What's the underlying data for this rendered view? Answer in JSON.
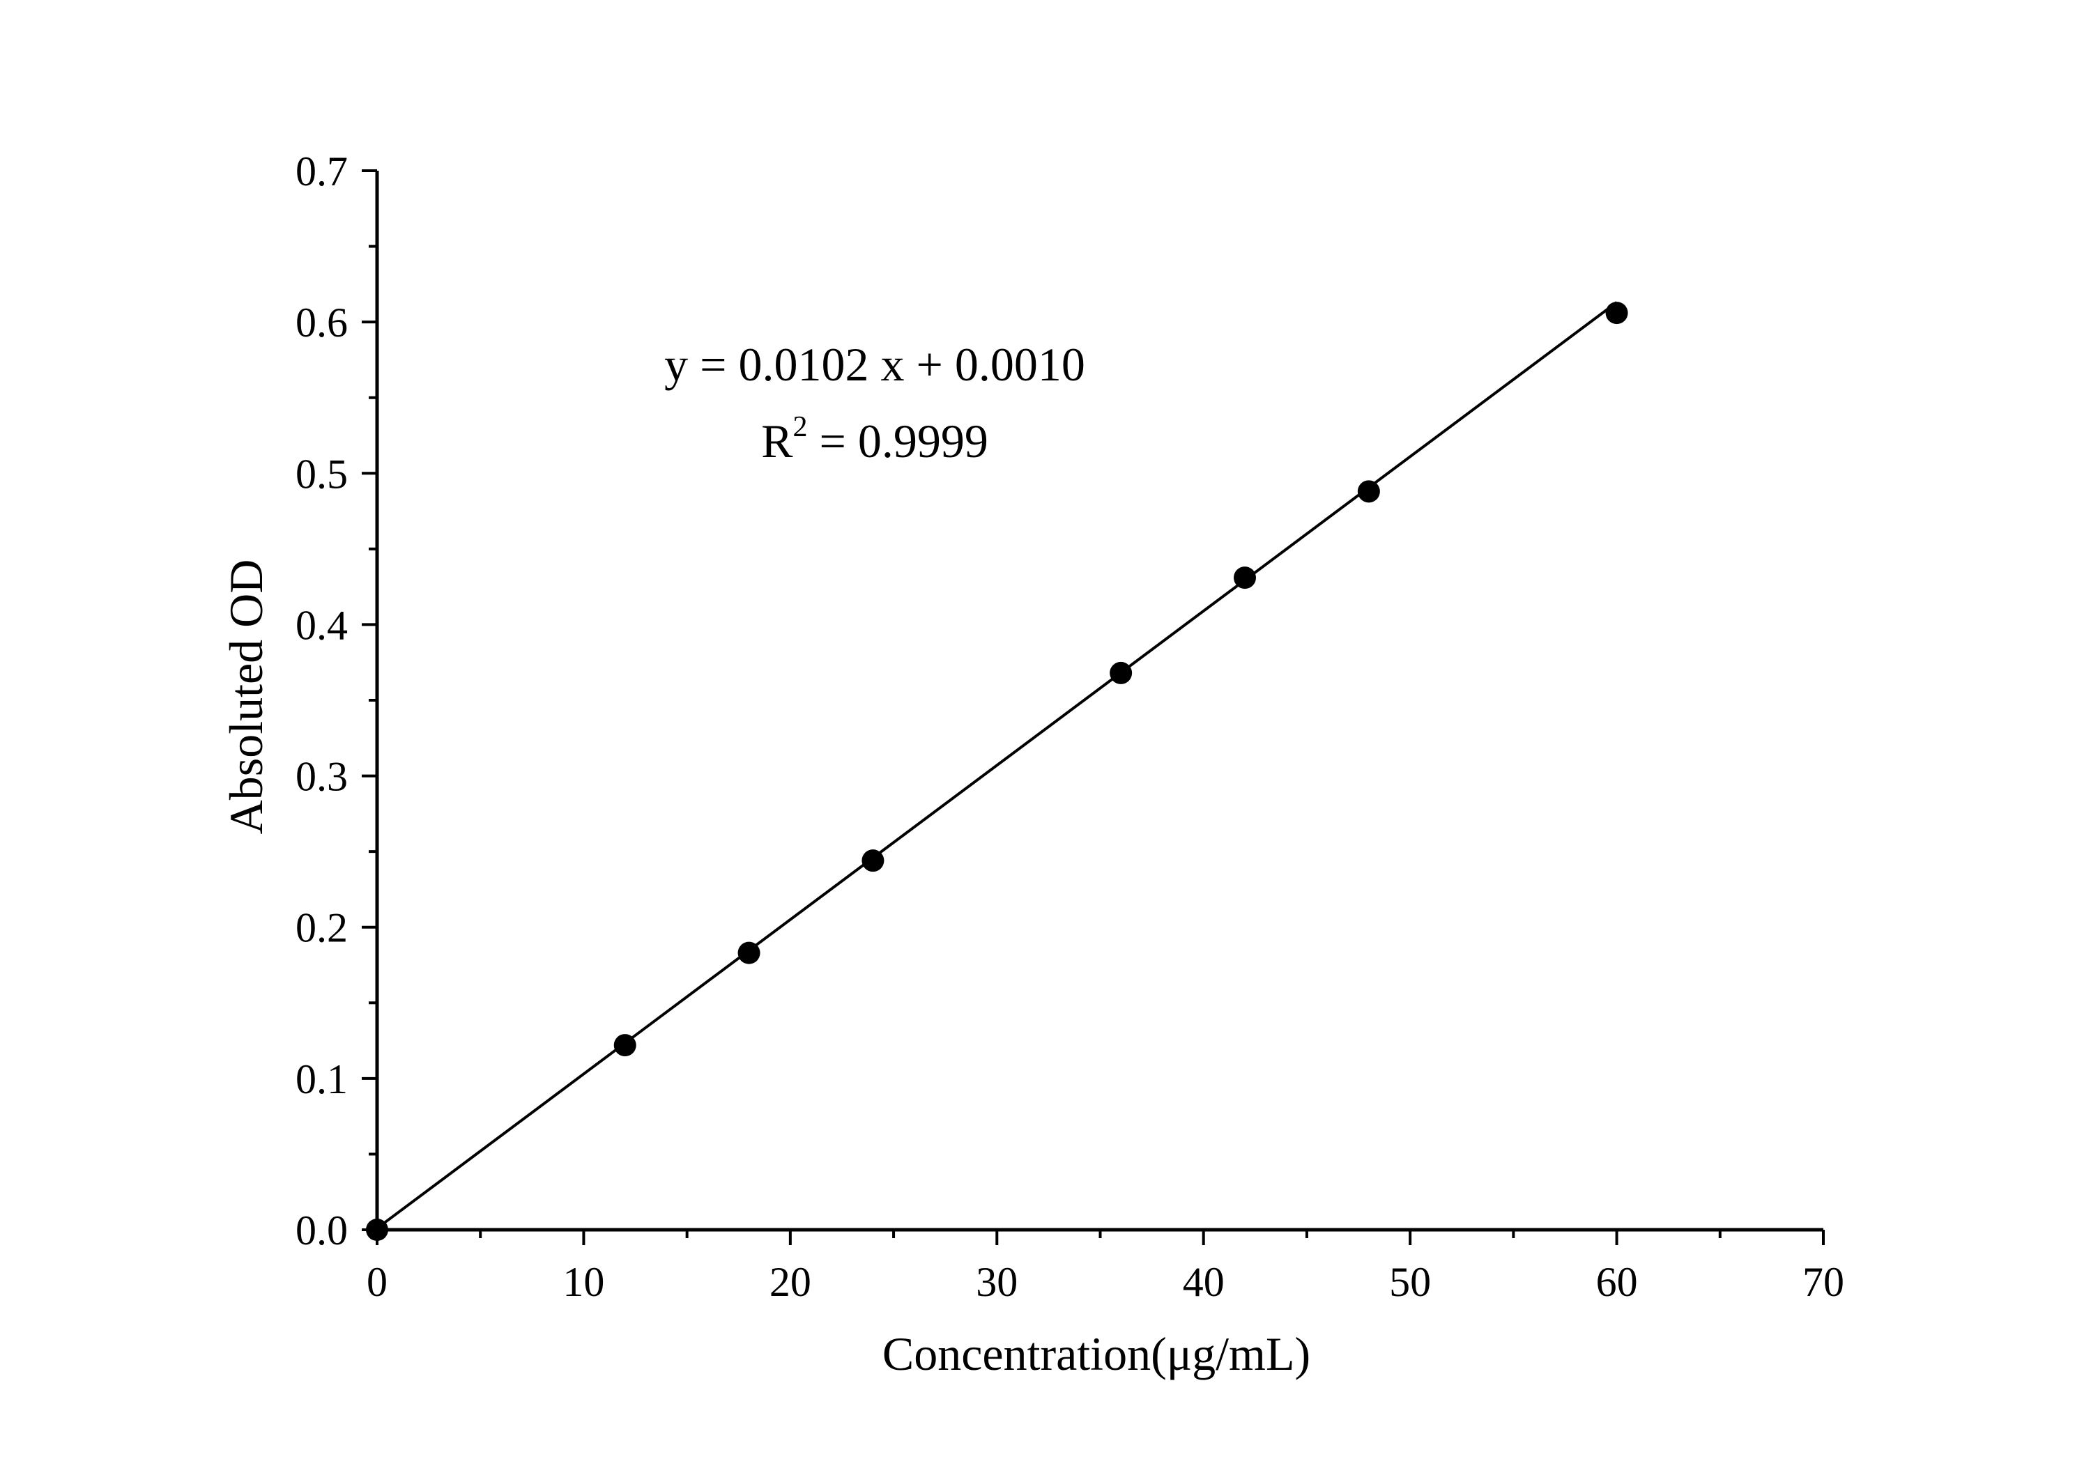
{
  "chart_data": {
    "type": "scatter",
    "xlabel": "Concentration(μg/mL)",
    "ylabel": "Absoluted OD",
    "xlim": [
      0,
      70
    ],
    "ylim": [
      0,
      0.7
    ],
    "x_ticks": [
      0,
      10,
      20,
      30,
      40,
      50,
      60,
      70
    ],
    "y_ticks": [
      0.0,
      0.1,
      0.2,
      0.3,
      0.4,
      0.5,
      0.6,
      0.7
    ],
    "x_tick_labels": [
      "0",
      "10",
      "20",
      "30",
      "40",
      "50",
      "60",
      "70"
    ],
    "y_tick_labels": [
      "0.0",
      "0.1",
      "0.2",
      "0.3",
      "0.4",
      "0.5",
      "0.6",
      "0.7"
    ],
    "grid": false,
    "series": [
      {
        "x": [
          0,
          12,
          18,
          24,
          36,
          42,
          48,
          60
        ],
        "y": [
          0.0,
          0.122,
          0.183,
          0.244,
          0.368,
          0.431,
          0.488,
          0.606
        ],
        "marker_color": "#000000"
      }
    ],
    "fit_line": {
      "slope": 0.0102,
      "intercept": 0.001,
      "x_range": [
        0,
        60
      ],
      "color": "#000000"
    },
    "annotations": {
      "equation": "y = 0.0102 x + 0.0010",
      "r2_prefix": "R",
      "r2_sup": "2",
      "r2_value": " = 0.9999"
    }
  }
}
